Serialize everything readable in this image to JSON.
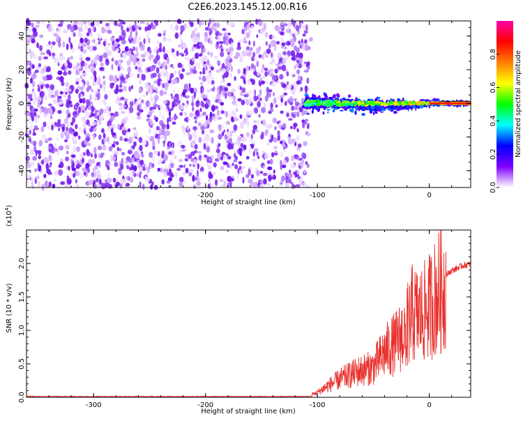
{
  "title": "C2E6.2023.145.12.00.R16",
  "colors": {
    "snr_line": "#e8302c",
    "axis": "#000000",
    "background": "#ffffff"
  },
  "chart_data": [
    {
      "type": "heatmap",
      "name": "spectrogram",
      "xlabel": "Height of straight line (km)",
      "ylabel": "Frequency (Hz)",
      "xlim": [
        -360,
        37
      ],
      "ylim": [
        -50,
        49
      ],
      "xticks": [
        -300,
        -200,
        -100,
        0
      ],
      "yticks": [
        -40,
        -20,
        0,
        20,
        40
      ],
      "noise_region": {
        "x_range": [
          -360,
          -108
        ],
        "freq_range": [
          -50,
          49
        ],
        "amplitude": 0.15
      },
      "signal_region": {
        "x_range": [
          -112,
          37
        ],
        "center_freq_hz": 0,
        "amplitude": 0.75
      },
      "colorbar": {
        "label": "Normalized spectral amplitude",
        "range": [
          0.0,
          1.0
        ],
        "ticks": [
          "0.0",
          "0.2",
          "0.4",
          "0.6",
          "0.8"
        ],
        "colormap": [
          "#ffffff",
          "#7f00ff",
          "#0000ff",
          "#00ffff",
          "#00ff00",
          "#ffff00",
          "#ff7f00",
          "#ff0000",
          "#ff00aa"
        ]
      }
    },
    {
      "type": "line",
      "name": "snr",
      "xlabel": "Height of straight line (km)",
      "ylabel": "SNR (10 * v/v)",
      "y_multiplier_label": "(x10",
      "y_multiplier_exp": "4",
      "xlim": [
        -360,
        37
      ],
      "ylim": [
        0,
        2.5
      ],
      "xticks": [
        -300,
        -200,
        -100,
        0
      ],
      "yticks": [
        "0.0",
        "0.5",
        "1.0",
        "1.5",
        "2.0"
      ],
      "series": [
        {
          "x": [
            -360,
            -300,
            -200,
            -110,
            -100,
            -90,
            -80,
            -70,
            -60,
            -50,
            -40,
            -30,
            -20,
            -15,
            -10,
            -5,
            0,
            5,
            10,
            20,
            30,
            37
          ],
          "y": [
            0.01,
            0.01,
            0.01,
            0.02,
            0.08,
            0.2,
            0.3,
            0.38,
            0.45,
            0.5,
            0.75,
            0.9,
            1.15,
            1.4,
            1.35,
            1.4,
            1.5,
            1.65,
            1.78,
            1.9,
            1.98,
            2.0
          ]
        }
      ]
    }
  ]
}
